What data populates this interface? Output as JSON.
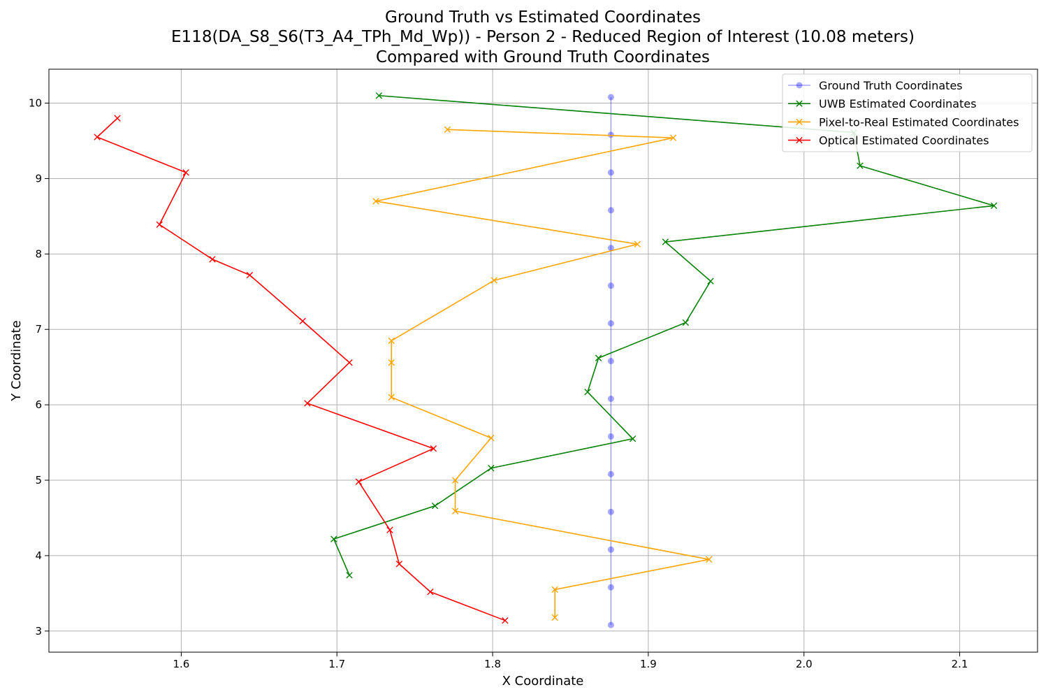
{
  "chart_data": {
    "type": "line",
    "title": [
      "Ground Truth vs Estimated Coordinates",
      "E118(DA_S8_S6(T3_A4_TPh_Md_Wp)) - Person 2 - Reduced Region of Interest (10.08 meters)",
      "Compared with Ground Truth Coordinates"
    ],
    "xlabel": "X Coordinate",
    "ylabel": "Y Coordinate",
    "xlim": [
      1.515,
      2.15
    ],
    "ylim": [
      2.72,
      10.45
    ],
    "xticks": [
      1.6,
      1.7,
      1.8,
      1.9,
      2.0,
      2.1
    ],
    "yticks": [
      3,
      4,
      5,
      6,
      7,
      8,
      9,
      10
    ],
    "grid": true,
    "legend_position": "top-right",
    "series": [
      {
        "name": "Ground Truth Coordinates",
        "color": "#0000ff",
        "marker": "circle",
        "alpha": 0.35,
        "x": [
          1.876,
          1.876,
          1.876,
          1.876,
          1.876,
          1.876,
          1.876,
          1.876,
          1.876,
          1.876,
          1.876,
          1.876,
          1.876,
          1.876,
          1.876
        ],
        "y": [
          10.08,
          9.58,
          9.08,
          8.58,
          8.08,
          7.58,
          7.08,
          6.58,
          6.08,
          5.58,
          5.08,
          4.58,
          4.08,
          3.58,
          3.08
        ]
      },
      {
        "name": "UWB Estimated Coordinates",
        "color": "#008000",
        "marker": "x",
        "alpha": 1,
        "x": [
          1.727,
          2.032,
          2.036,
          2.122,
          1.911,
          1.94,
          1.924,
          1.868,
          1.861,
          1.89,
          1.799,
          1.763,
          1.698,
          1.708
        ],
        "y": [
          10.1,
          9.61,
          9.17,
          8.64,
          8.16,
          7.64,
          7.09,
          6.62,
          6.17,
          5.55,
          5.16,
          4.66,
          4.22,
          3.74
        ]
      },
      {
        "name": "Pixel-to-Real Estimated Coordinates",
        "color": "#ffa500",
        "marker": "x",
        "alpha": 1,
        "x": [
          1.771,
          1.916,
          1.725,
          1.893,
          1.801,
          1.735,
          1.735,
          1.735,
          1.799,
          1.776,
          1.776,
          1.939,
          1.84,
          1.84
        ],
        "y": [
          9.65,
          9.54,
          8.7,
          8.13,
          7.65,
          6.85,
          6.56,
          6.1,
          5.56,
          5.0,
          4.59,
          3.95,
          3.55,
          3.18
        ]
      },
      {
        "name": "Optical Estimated Coordinates",
        "color": "#ff0000",
        "marker": "x",
        "alpha": 1,
        "x": [
          1.559,
          1.546,
          1.603,
          1.586,
          1.62,
          1.644,
          1.678,
          1.708,
          1.681,
          1.762,
          1.714,
          1.734,
          1.74,
          1.76,
          1.808
        ],
        "y": [
          9.8,
          9.55,
          9.08,
          8.39,
          7.93,
          7.72,
          7.11,
          6.56,
          6.02,
          5.42,
          4.98,
          4.34,
          3.89,
          3.52,
          3.14
        ]
      }
    ]
  }
}
